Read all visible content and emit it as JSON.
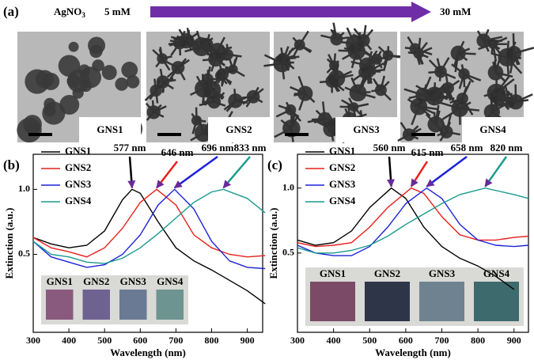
{
  "panel_a": {
    "label": "(a)",
    "reagent": "AgNO",
    "reagent_sub": "3",
    "start": "5 mM",
    "end": "30 mM",
    "images": [
      "GNS1",
      "GNS2",
      "GNS3",
      "GNS4"
    ]
  },
  "chart_data": [
    {
      "type": "line",
      "panel": "(b)",
      "xlabel": "Wavelength (nm)",
      "ylabel": "Extinction (a.u.)",
      "xlim": [
        300,
        943
      ],
      "xticks": [
        300,
        400,
        500,
        600,
        700,
        800,
        900
      ],
      "ylim": [
        -0.1,
        1.27
      ],
      "yticks": [
        0.5,
        {
          "value": 1,
          "label": "1.0"
        }
      ],
      "annotations": [
        "577 nm",
        "646 nm",
        "696 nm",
        "833 nm"
      ],
      "inset_labels": [
        "GNS1",
        "GNS2",
        "GNS3",
        "GNS4"
      ],
      "inset_colors": [
        "#8a5a7e",
        "#6e6390",
        "#6b7a94",
        "#6d9490"
      ],
      "series": [
        {
          "name": "GNS1",
          "color": "#000000",
          "x": [
            300,
            350,
            400,
            450,
            500,
            550,
            577,
            600,
            650,
            700,
            750,
            800,
            850,
            900,
            950
          ],
          "values": [
            0.63,
            0.58,
            0.55,
            0.57,
            0.68,
            0.92,
            1.0,
            0.97,
            0.75,
            0.55,
            0.45,
            0.38,
            0.3,
            0.22,
            0.12
          ]
        },
        {
          "name": "GNS2",
          "color": "#e8201c",
          "x": [
            300,
            350,
            400,
            450,
            500,
            550,
            600,
            646,
            700,
            750,
            800,
            850,
            900,
            950
          ],
          "values": [
            0.63,
            0.55,
            0.52,
            0.48,
            0.55,
            0.7,
            0.9,
            1.0,
            0.88,
            0.65,
            0.55,
            0.5,
            0.48,
            0.49
          ]
        },
        {
          "name": "GNS3",
          "color": "#1c22d8",
          "x": [
            300,
            350,
            400,
            450,
            500,
            550,
            600,
            650,
            696,
            750,
            800,
            850,
            900,
            950
          ],
          "values": [
            0.6,
            0.48,
            0.44,
            0.4,
            0.42,
            0.5,
            0.65,
            0.88,
            1.0,
            0.85,
            0.6,
            0.45,
            0.4,
            0.39
          ]
        },
        {
          "name": "GNS4",
          "color": "#1a9a8e",
          "x": [
            300,
            350,
            400,
            450,
            500,
            550,
            600,
            650,
            700,
            750,
            800,
            833,
            900,
            950
          ],
          "values": [
            0.6,
            0.5,
            0.48,
            0.44,
            0.43,
            0.47,
            0.55,
            0.66,
            0.78,
            0.9,
            0.98,
            1.0,
            0.93,
            0.82
          ]
        }
      ]
    },
    {
      "type": "line",
      "panel": "(c)",
      "xlabel": "Wavelength (nm)",
      "ylabel": "Extinction (a.u.)",
      "xlim": [
        300,
        940
      ],
      "xticks": [
        300,
        400,
        500,
        600,
        700,
        800,
        900
      ],
      "ylim": [
        -0.11,
        1.26
      ],
      "yticks": [
        0.5,
        {
          "value": 1,
          "label": "1.0"
        }
      ],
      "annotations": [
        "560 nm",
        "615 nm",
        "658 nm",
        "820 nm"
      ],
      "inset_labels": [
        "GNS1",
        "GNS2",
        "GNS3",
        "GNS4"
      ],
      "inset_colors": [
        "#7a4a66",
        "#2e3548",
        "#6f8290",
        "#3d6a6c"
      ],
      "series": [
        {
          "name": "GNS1",
          "color": "#000000",
          "x": [
            300,
            350,
            400,
            450,
            500,
            560,
            600,
            650,
            700,
            750,
            800,
            850,
            900
          ],
          "values": [
            0.6,
            0.56,
            0.58,
            0.67,
            0.85,
            1.0,
            0.92,
            0.7,
            0.55,
            0.46,
            0.4,
            0.32,
            0.22
          ]
        },
        {
          "name": "GNS2",
          "color": "#e8201c",
          "x": [
            300,
            350,
            400,
            450,
            500,
            550,
            615,
            650,
            700,
            750,
            800,
            850,
            900,
            940
          ],
          "values": [
            0.58,
            0.55,
            0.56,
            0.58,
            0.7,
            0.85,
            1.0,
            0.96,
            0.78,
            0.64,
            0.6,
            0.6,
            0.62,
            0.63
          ]
        },
        {
          "name": "GNS3",
          "color": "#1c22d8",
          "x": [
            300,
            350,
            400,
            450,
            500,
            550,
            600,
            658,
            700,
            750,
            800,
            850,
            900,
            940
          ],
          "values": [
            0.56,
            0.5,
            0.48,
            0.48,
            0.55,
            0.7,
            0.88,
            1.0,
            0.92,
            0.72,
            0.6,
            0.56,
            0.55,
            0.56
          ]
        },
        {
          "name": "GNS4",
          "color": "#1a9a8e",
          "x": [
            300,
            350,
            400,
            450,
            500,
            550,
            600,
            650,
            700,
            750,
            820,
            900,
            940
          ],
          "values": [
            0.54,
            0.5,
            0.5,
            0.52,
            0.56,
            0.63,
            0.72,
            0.8,
            0.88,
            0.95,
            1.0,
            0.95,
            0.92
          ]
        }
      ]
    }
  ]
}
